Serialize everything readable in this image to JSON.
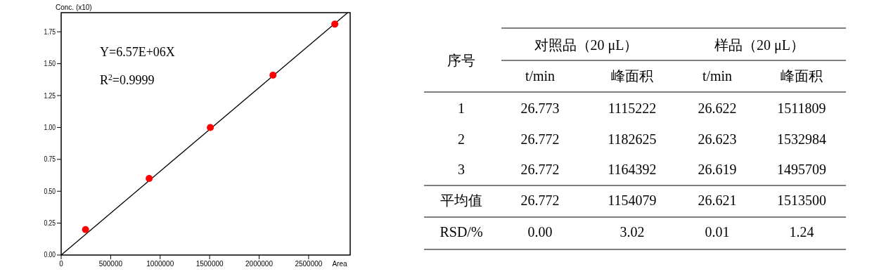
{
  "chart_data": [
    {
      "type": "scatter",
      "xlabel": "Area",
      "ylabel": "Conc. (x10)",
      "xlim": [
        0,
        2920000
      ],
      "ylim": [
        0,
        1.9
      ],
      "xticks": [
        0,
        500000,
        1000000,
        1500000,
        2000000,
        2500000
      ],
      "yticks": [
        {
          "value": 0,
          "label": "0.00"
        },
        {
          "value": 0.25,
          "label": "0.25"
        },
        {
          "value": 0.5,
          "label": "0.50"
        },
        {
          "value": 0.75,
          "label": "0.75"
        },
        {
          "value": 1,
          "label": "1.00"
        },
        {
          "value": 1.25,
          "label": "1.25"
        },
        {
          "value": 1.5,
          "label": "1.50"
        },
        {
          "value": 1.75,
          "label": "1.75"
        }
      ],
      "series": [
        {
          "type": "scatter",
          "color": "#ff0000",
          "marker": "circle",
          "x": [
            246000,
            889000,
            1507000,
            2140000,
            2765000
          ],
          "values": [
            0.2,
            0.6,
            1.0,
            1.41,
            1.81
          ]
        },
        {
          "type": "line",
          "color": "#000000",
          "marker": "none",
          "x": [
            0,
            2895000
          ],
          "values": [
            0,
            1.9
          ]
        }
      ],
      "annotations": [
        "Y=6.57E+06X",
        "R$^{2}$=0.9999"
      ]
    },
    {
      "type": "other",
      "annotations": [
        "序号",
        "对照品（20 μL）",
        "样品（20 μL）"
      ],
      "categories": [
        "t/min",
        "峰面积",
        "t/min",
        "峰面积"
      ],
      "y_categories": [
        "1",
        "2",
        "3",
        "平均值",
        "RSD/%"
      ],
      "cell_labels": [
        [
          "26.773",
          "1115222",
          "26.622",
          "1511809"
        ],
        [
          "26.772",
          "1182625",
          "26.623",
          "1532984"
        ],
        [
          "26.772",
          "1164392",
          "26.619",
          "1495709"
        ],
        [
          "26.772",
          "1154079",
          "26.621",
          "1513500"
        ],
        [
          "0.00",
          "3.02",
          "0.01",
          "1.24"
        ]
      ]
    }
  ]
}
